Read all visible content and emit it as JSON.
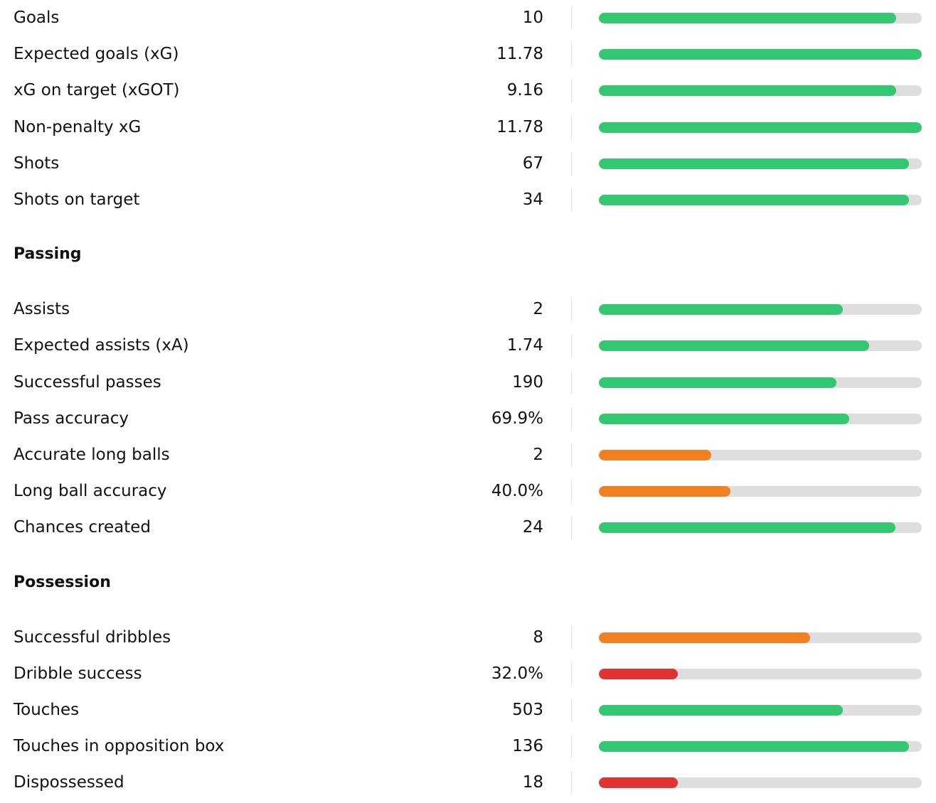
{
  "colors": {
    "green": "#33c771",
    "orange": "#f08022",
    "red": "#e03434",
    "track": "#dedede"
  },
  "sections": [
    {
      "title": "",
      "rows": [
        {
          "label": "Goals",
          "value": "10",
          "fill": 0.92,
          "color": "green"
        },
        {
          "label": "Expected goals (xG)",
          "value": "11.78",
          "fill": 1.0,
          "color": "green"
        },
        {
          "label": "xG on target (xGOT)",
          "value": "9.16",
          "fill": 0.92,
          "color": "green"
        },
        {
          "label": "Non-penalty xG",
          "value": "11.78",
          "fill": 1.0,
          "color": "green"
        },
        {
          "label": "Shots",
          "value": "67",
          "fill": 0.96,
          "color": "green"
        },
        {
          "label": "Shots on target",
          "value": "34",
          "fill": 0.96,
          "color": "green"
        }
      ]
    },
    {
      "title": "Passing",
      "rows": [
        {
          "label": "Assists",
          "value": "2",
          "fill": 0.755,
          "color": "green"
        },
        {
          "label": "Expected assists (xA)",
          "value": "1.74",
          "fill": 0.837,
          "color": "green"
        },
        {
          "label": "Successful passes",
          "value": "190",
          "fill": 0.735,
          "color": "green"
        },
        {
          "label": "Pass accuracy",
          "value": "69.9%",
          "fill": 0.775,
          "color": "green"
        },
        {
          "label": "Accurate long balls",
          "value": "2",
          "fill": 0.348,
          "color": "orange"
        },
        {
          "label": "Long ball accuracy",
          "value": "40.0%",
          "fill": 0.407,
          "color": "orange"
        },
        {
          "label": "Chances created",
          "value": "24",
          "fill": 0.918,
          "color": "green"
        }
      ]
    },
    {
      "title": "Possession",
      "rows": [
        {
          "label": "Successful dribbles",
          "value": "8",
          "fill": 0.654,
          "color": "orange"
        },
        {
          "label": "Dribble success",
          "value": "32.0%",
          "fill": 0.244,
          "color": "red"
        },
        {
          "label": "Touches",
          "value": "503",
          "fill": 0.755,
          "color": "green"
        },
        {
          "label": "Touches in opposition box",
          "value": "136",
          "fill": 0.96,
          "color": "green"
        },
        {
          "label": "Dispossessed",
          "value": "18",
          "fill": 0.244,
          "color": "red"
        }
      ]
    }
  ]
}
